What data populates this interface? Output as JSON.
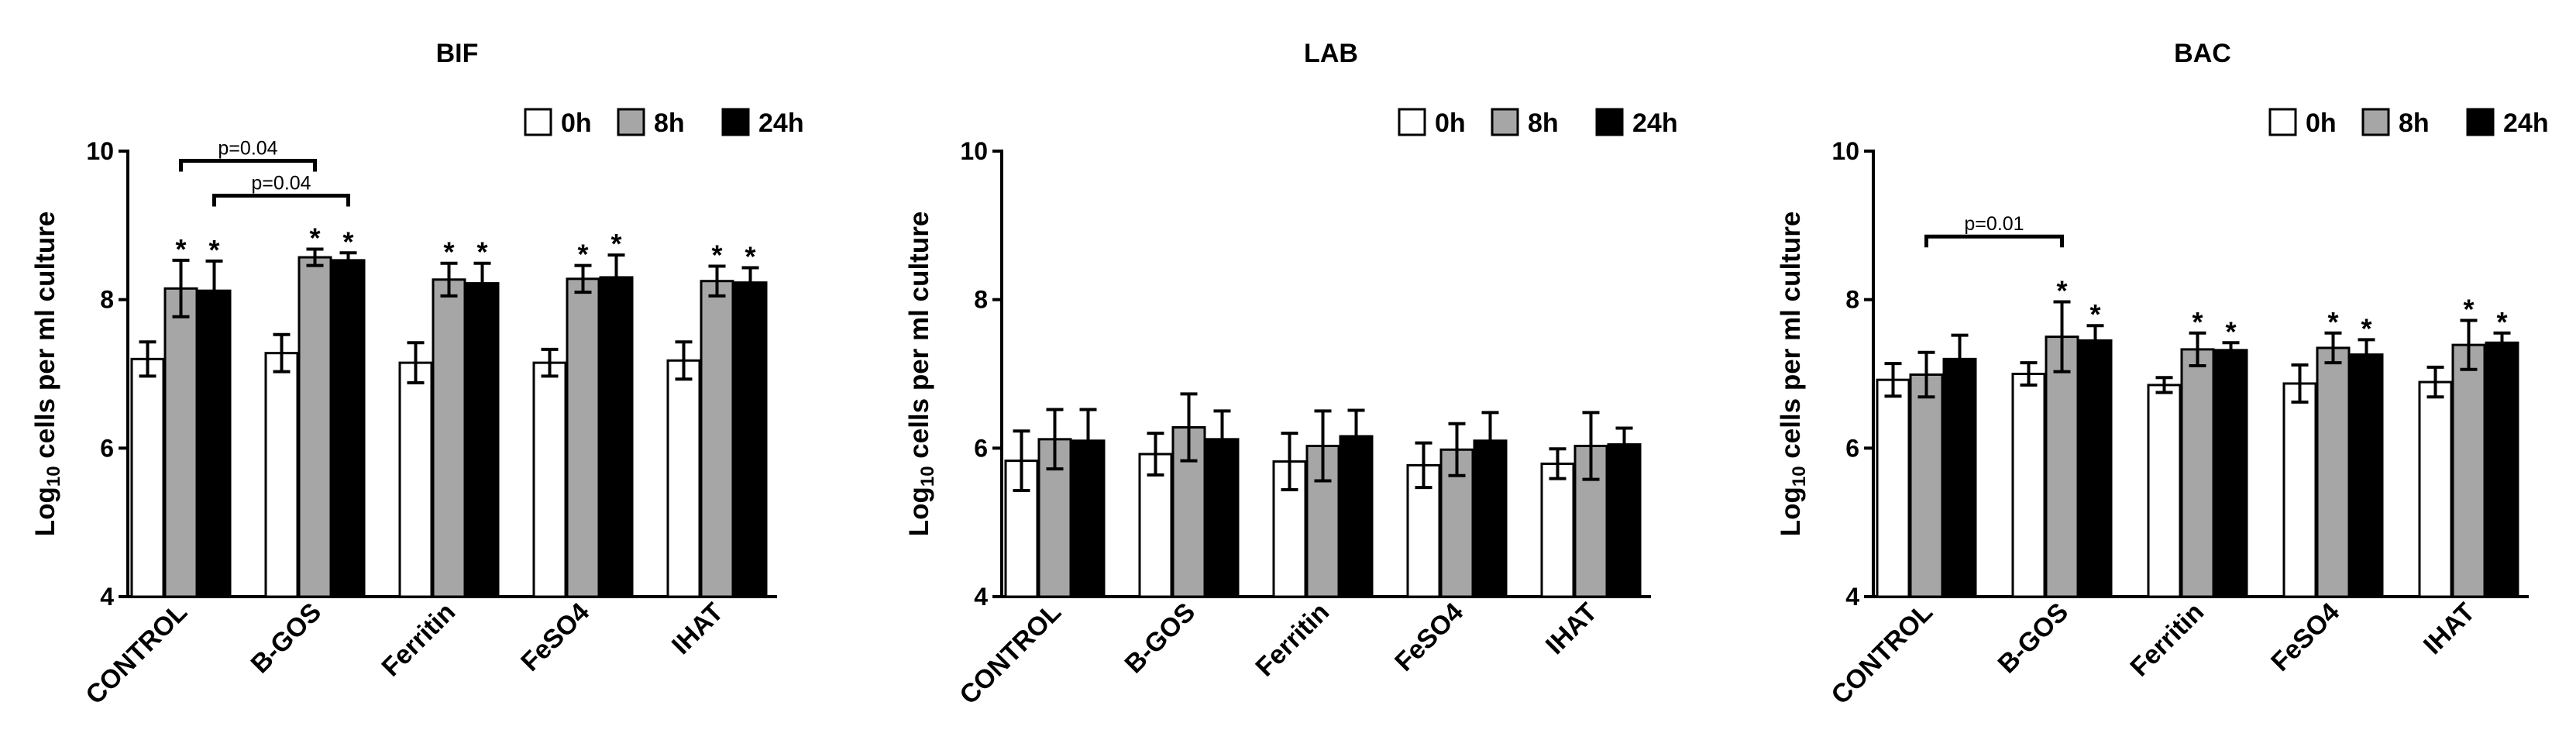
{
  "chart_data": [
    {
      "type": "bar",
      "title": "BIF",
      "ylabel_base": "Log",
      "ylabel_sub": "10",
      "ylabel_rest": " cells per ml culture",
      "ylim": [
        4,
        10
      ],
      "yticks": [
        "4",
        "6",
        "8",
        "10"
      ],
      "categories": [
        "CONTROL",
        "B-GOS",
        "Ferritin",
        "FeSO4",
        "IHAT"
      ],
      "series": [
        {
          "name": "0h",
          "color": "#ffffff",
          "values": [
            7.2,
            7.28,
            7.15,
            7.15,
            7.18
          ],
          "errors": [
            0.23,
            0.25,
            0.27,
            0.18,
            0.25
          ],
          "sig": [
            "",
            "",
            "",
            "",
            ""
          ]
        },
        {
          "name": "8h",
          "color": "#a6a6a6",
          "values": [
            8.15,
            8.57,
            8.27,
            8.28,
            8.25
          ],
          "errors": [
            0.38,
            0.11,
            0.22,
            0.18,
            0.2
          ],
          "sig": [
            "*",
            "*",
            "*",
            "*",
            "*"
          ]
        },
        {
          "name": "24h",
          "color": "#000000",
          "values": [
            8.12,
            8.53,
            8.22,
            8.3,
            8.23
          ],
          "errors": [
            0.4,
            0.1,
            0.27,
            0.3,
            0.2
          ],
          "sig": [
            "*",
            "*",
            "*",
            "*",
            "*"
          ]
        }
      ],
      "comparisons": [
        {
          "label": "p=0.04",
          "from": [
            0,
            1
          ],
          "to": [
            1,
            1
          ],
          "y": 9.87
        },
        {
          "label": "p=0.04",
          "from": [
            0,
            2
          ],
          "to": [
            1,
            2
          ],
          "y": 9.4
        }
      ],
      "legend_position": "top-right"
    },
    {
      "type": "bar",
      "title": "LAB",
      "ylabel_base": "Log",
      "ylabel_sub": "10",
      "ylabel_rest": " cells per ml culture",
      "ylim": [
        4,
        10
      ],
      "yticks": [
        "4",
        "6",
        "8",
        "10"
      ],
      "categories": [
        "CONTROL",
        "B-GOS",
        "Ferritin",
        "FeSO4",
        "IHAT"
      ],
      "series": [
        {
          "name": "0h",
          "color": "#ffffff",
          "values": [
            5.83,
            5.92,
            5.82,
            5.77,
            5.79
          ],
          "errors": [
            0.4,
            0.28,
            0.38,
            0.3,
            0.2
          ],
          "sig": [
            "",
            "",
            "",
            "",
            ""
          ]
        },
        {
          "name": "8h",
          "color": "#a6a6a6",
          "values": [
            6.12,
            6.28,
            6.03,
            5.98,
            6.03
          ],
          "errors": [
            0.4,
            0.45,
            0.47,
            0.35,
            0.45
          ],
          "sig": [
            "",
            "",
            "",
            "",
            ""
          ]
        },
        {
          "name": "24h",
          "color": "#000000",
          "values": [
            6.1,
            6.12,
            6.16,
            6.1,
            6.05
          ],
          "errors": [
            0.42,
            0.38,
            0.35,
            0.38,
            0.22
          ],
          "sig": [
            "",
            "",
            "",
            "",
            ""
          ]
        }
      ],
      "comparisons": [],
      "legend_position": "top-right"
    },
    {
      "type": "bar",
      "title": "BAC",
      "ylabel_base": "Log",
      "ylabel_sub": "10",
      "ylabel_rest": " cells per ml culture",
      "ylim": [
        4,
        10
      ],
      "yticks": [
        "4",
        "6",
        "8",
        "10"
      ],
      "categories": [
        "CONTROL",
        "B-GOS",
        "Ferritin",
        "FeSO4",
        "IHAT"
      ],
      "series": [
        {
          "name": "0h",
          "color": "#ffffff",
          "values": [
            6.92,
            7.0,
            6.85,
            6.87,
            6.89
          ],
          "errors": [
            0.22,
            0.15,
            0.1,
            0.25,
            0.2
          ],
          "sig": [
            "",
            "",
            "",
            "",
            ""
          ]
        },
        {
          "name": "8h",
          "color": "#a6a6a6",
          "values": [
            6.99,
            7.5,
            7.33,
            7.35,
            7.39
          ],
          "errors": [
            0.3,
            0.47,
            0.22,
            0.2,
            0.33
          ],
          "sig": [
            "",
            "*",
            "*",
            "*",
            "*"
          ]
        },
        {
          "name": "24h",
          "color": "#000000",
          "values": [
            7.2,
            7.45,
            7.32,
            7.26,
            7.42
          ],
          "errors": [
            0.32,
            0.2,
            0.1,
            0.2,
            0.13
          ],
          "sig": [
            "",
            "*",
            "*",
            "*",
            "*"
          ]
        }
      ],
      "comparisons": [
        {
          "label": "p=0.01",
          "from": [
            0,
            1
          ],
          "to": [
            1,
            1
          ],
          "y": 8.85
        }
      ],
      "legend_position": "top-right"
    }
  ]
}
